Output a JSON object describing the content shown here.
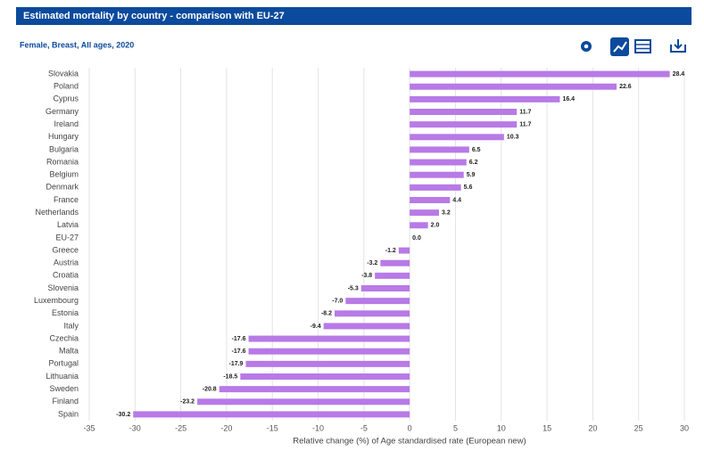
{
  "chart_data": {
    "type": "hbar",
    "title": "Estimated mortality by country - comparison with EU-27",
    "subtitle": "Female, Breast, All ages, 2020",
    "x_label": "Relative change (%) of Age standardised rate (European new)",
    "categories": [
      "Slovakia",
      "Poland",
      "Cyprus",
      "Germany",
      "Ireland",
      "Hungary",
      "Bulgaria",
      "Romania",
      "Belgium",
      "Denmark",
      "France",
      "Netherlands",
      "Latvia",
      "EU-27",
      "Greece",
      "Austria",
      "Croatia",
      "Slovenia",
      "Luxembourg",
      "Estonia",
      "Italy",
      "Czechia",
      "Malta",
      "Portugal",
      "Lithuania",
      "Sweden",
      "Finland",
      "Spain"
    ],
    "values": [
      28.4,
      22.6,
      16.4,
      11.7,
      11.7,
      10.3,
      6.5,
      6.2,
      5.9,
      5.6,
      4.4,
      3.2,
      2.0,
      0.0,
      -1.2,
      -3.2,
      -3.8,
      -5.3,
      -7.0,
      -8.2,
      -9.4,
      -17.6,
      -17.6,
      -17.9,
      -18.5,
      -20.8,
      -23.2,
      -30.2
    ],
    "value_labels": [
      "28.4",
      "22.6",
      "16.4",
      "11.7",
      "11.7",
      "10.3",
      "6.5",
      "6.2",
      "5.9",
      "5.6",
      "4.4",
      "3.2",
      "2.0",
      "0.0",
      "-1.2",
      "-3.2",
      "-3.8",
      "-5.3",
      "-7.0",
      "-8.2",
      "-9.4",
      "-17.6",
      "-17.6",
      "-17.9",
      "-18.5",
      "-20.8",
      "-23.2",
      "-30.2"
    ],
    "color": "#b87ae6",
    "xlim": [
      -35,
      30
    ],
    "xticks": [
      -35,
      -30,
      -25,
      -20,
      -15,
      -10,
      -5,
      0,
      5,
      10,
      15,
      20,
      25,
      30
    ],
    "grid": true
  }
}
